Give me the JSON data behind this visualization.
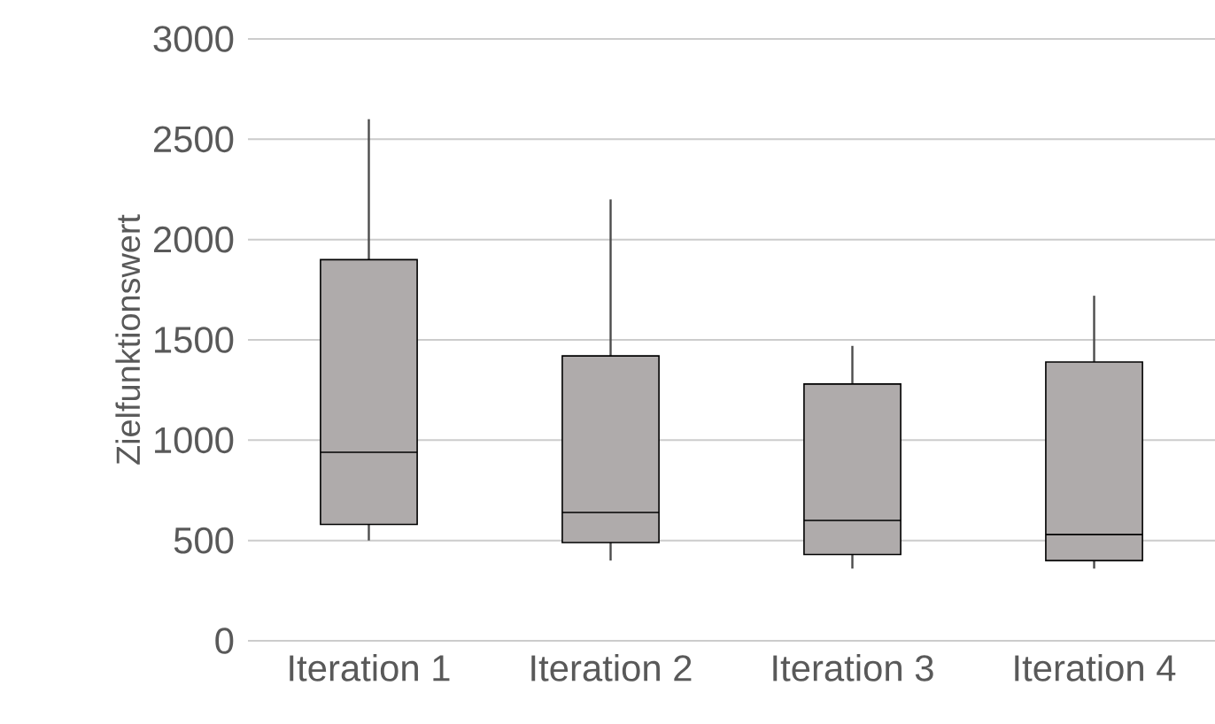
{
  "chart_data": {
    "type": "box",
    "ylabel": "Zielfunktionswert",
    "categories": [
      "Iteration 1",
      "Iteration 2",
      "Iteration 3",
      "Iteration 4"
    ],
    "color": "#afabab",
    "boxes": [
      {
        "low": 500,
        "q1": 580,
        "median": 940,
        "q3": 1900,
        "high": 2600
      },
      {
        "low": 400,
        "q1": 490,
        "median": 640,
        "q3": 1420,
        "high": 2200
      },
      {
        "low": 360,
        "q1": 430,
        "median": 600,
        "q3": 1280,
        "high": 1470
      },
      {
        "low": 360,
        "q1": 400,
        "median": 530,
        "q3": 1390,
        "high": 1720
      }
    ],
    "ylim": [
      0,
      3000
    ],
    "yticks": [
      0,
      500,
      1000,
      1500,
      2000,
      2500,
      3000
    ],
    "grid": "y"
  }
}
